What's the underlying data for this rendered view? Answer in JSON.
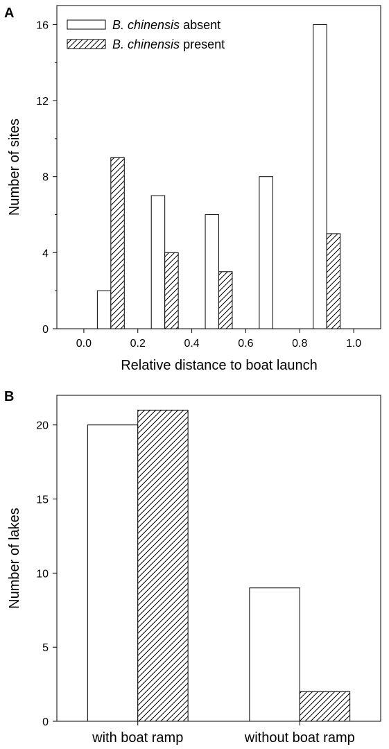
{
  "chart_data": [
    {
      "panel_label": "A",
      "type": "bar",
      "xlabel": "Relative distance to boat launch",
      "ylabel": "Number of sites",
      "x_ticks": [
        "0.0",
        "0.2",
        "0.4",
        "0.6",
        "0.8",
        "1.0"
      ],
      "x_range": [
        -0.1,
        1.1
      ],
      "y_ticks": [
        "0",
        "4",
        "8",
        "12",
        "16"
      ],
      "ylim": [
        0,
        17
      ],
      "bin_centers": [
        0.1,
        0.3,
        0.5,
        0.7,
        0.9
      ],
      "series": [
        {
          "name_italic": "B. chinensis",
          "name_rest": " absent",
          "pattern": "open",
          "values": [
            2,
            7,
            6,
            8,
            16
          ]
        },
        {
          "name_italic": "B. chinensis",
          "name_rest": " present",
          "pattern": "hatched",
          "values": [
            9,
            4,
            3,
            0,
            5
          ]
        }
      ],
      "legend_position": "top-left",
      "grid": false
    },
    {
      "panel_label": "B",
      "type": "bar",
      "xlabel": "",
      "ylabel": "Number of lakes",
      "categories": [
        "with boat ramp",
        "without boat ramp"
      ],
      "y_ticks": [
        "0",
        "5",
        "10",
        "15",
        "20"
      ],
      "ylim": [
        0,
        22
      ],
      "series": [
        {
          "pattern": "open",
          "values": [
            20,
            9
          ]
        },
        {
          "pattern": "hatched",
          "values": [
            21,
            2
          ]
        }
      ],
      "grid": false
    }
  ]
}
